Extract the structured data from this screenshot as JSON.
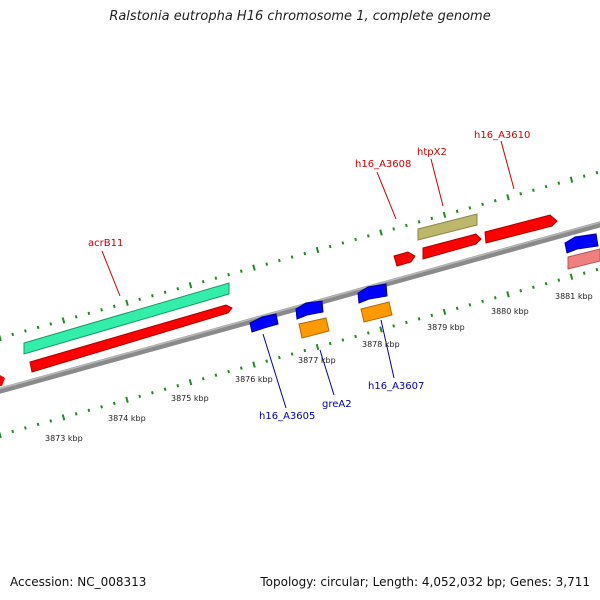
{
  "title": "Ralstonia eutropha H16 chromosome 1, complete genome",
  "footer": {
    "accession": "Accession: NC_008313",
    "summary": "Topology: circular; Length: 4,052,032 bp; Genes: 3,711"
  },
  "scale_labels": [
    "3873 kbp",
    "3874 kbp",
    "3875 kbp",
    "3876 kbp",
    "3877 kbp",
    "3878 kbp",
    "3879 kbp",
    "3880 kbp",
    "3881 kbp"
  ],
  "gene_labels": [
    {
      "name": "acrB11",
      "color": "#cc0000"
    },
    {
      "name": "h16_A3608",
      "color": "#cc0000"
    },
    {
      "name": "htpX2",
      "color": "#cc0000"
    },
    {
      "name": "h16_A3610",
      "color": "#cc0000"
    },
    {
      "name": "h16_A3605",
      "color": "#0000aa"
    },
    {
      "name": "greA2",
      "color": "#0000aa"
    },
    {
      "name": "h16_A3607",
      "color": "#0000aa"
    }
  ],
  "colors": {
    "backbone": "#808080",
    "tick": "#228b22",
    "cds_forward": "#ff0000",
    "cds_reverse": "#0000ff",
    "gene_teal": "#33eeaa",
    "gene_orange": "#ff9900",
    "gene_khaki": "#bdb76b",
    "gene_pink": "#f08080"
  }
}
